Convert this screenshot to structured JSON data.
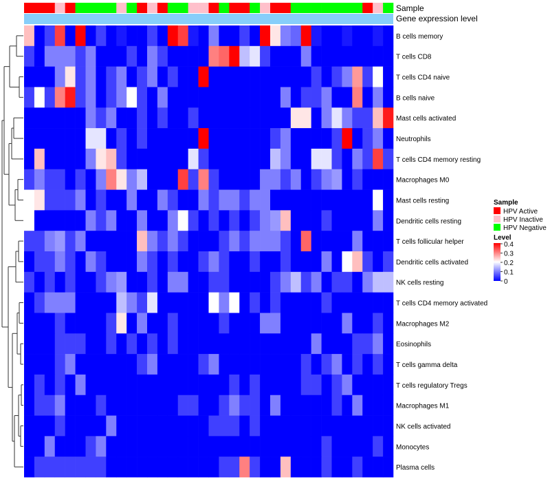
{
  "chart_data": {
    "type": "heatmap",
    "title": "",
    "annotation_rows": {
      "sample_label": "Sample",
      "gene_label": "Gene expression level",
      "gene_color": "#87CEFA"
    },
    "legend": {
      "sample_title": "Sample",
      "samples": [
        {
          "label": "HPV Active",
          "color": "#FF0000"
        },
        {
          "label": "HPV Inactive",
          "color": "#FFC0CB"
        },
        {
          "label": "HPV Negative",
          "color": "#00FF00"
        }
      ],
      "level_title": "Level",
      "level_ticks": [
        "0.4",
        "0.3",
        "0.2",
        "0.1",
        "0"
      ],
      "level_range": [
        0,
        0.4
      ]
    },
    "colorscale": {
      "low": "#0000FF",
      "mid": "#FFFFFF",
      "high": "#FF0000",
      "mid_value": 0.2
    },
    "columns_sample": [
      "A",
      "A",
      "A",
      "I",
      "A",
      "N",
      "N",
      "N",
      "N",
      "I",
      "N",
      "A",
      "I",
      "A",
      "N",
      "N",
      "I",
      "I",
      "A",
      "N",
      "A",
      "A",
      "N",
      "I",
      "A",
      "A",
      "N",
      "N",
      "N",
      "N",
      "N",
      "N",
      "N",
      "A",
      "I",
      "N"
    ],
    "rows": [
      "B cells memory",
      "T cells CD8",
      "T cells CD4 naive",
      "B cells naive",
      "Mast cells activated",
      "Neutrophils",
      "T cells CD4 memory resting",
      "Macrophages M0",
      "Mast cells resting",
      "Dendritic cells resting",
      "T cells follicular helper",
      "Dendritic cells activated",
      "NK cells resting",
      "T cells CD4 memory activated",
      "Macrophages M2",
      "Eosinophils",
      "T cells gamma delta",
      "T cells regulatory  Tregs",
      "Macrophages M1",
      "NK cells activated",
      "Monocytes",
      "Plasma cells"
    ],
    "values": [
      [
        0.25,
        0.0,
        0.05,
        0.35,
        0.0,
        0.4,
        0.0,
        0.05,
        0.0,
        0.02,
        0.0,
        0.0,
        0.05,
        0.0,
        0.4,
        0.35,
        0.02,
        0.0,
        0.1,
        0.0,
        0.0,
        0.05,
        0.0,
        0.4,
        0.22,
        0.1,
        0.08,
        0.4,
        0.02,
        0.0,
        0.0,
        0.02,
        0.0,
        0.0,
        0.02,
        0.0
      ],
      [
        0.05,
        0.0,
        0.1,
        0.1,
        0.1,
        0.05,
        0.1,
        0.0,
        0.0,
        0.0,
        0.05,
        0.0,
        0.1,
        0.05,
        0.0,
        0.0,
        0.0,
        0.0,
        0.3,
        0.32,
        0.4,
        0.15,
        0.18,
        0.05,
        0.0,
        0.0,
        0.0,
        0.1,
        0.0,
        0.0,
        0.0,
        0.0,
        0.0,
        0.0,
        0.0,
        0.0
      ],
      [
        0.0,
        0.0,
        0.0,
        0.1,
        0.22,
        0.05,
        0.1,
        0.0,
        0.05,
        0.1,
        0.0,
        0.05,
        0.1,
        0.0,
        0.05,
        0.0,
        0.0,
        0.4,
        0.0,
        0.0,
        0.0,
        0.0,
        0.0,
        0.0,
        0.0,
        0.0,
        0.0,
        0.0,
        0.05,
        0.0,
        0.05,
        0.1,
        0.28,
        0.05,
        0.2,
        0.0
      ],
      [
        0.05,
        0.2,
        0.05,
        0.3,
        0.38,
        0.05,
        0.1,
        0.0,
        0.05,
        0.1,
        0.2,
        0.05,
        0.0,
        0.1,
        0.0,
        0.0,
        0.0,
        0.0,
        0.0,
        0.0,
        0.0,
        0.0,
        0.0,
        0.0,
        0.0,
        0.1,
        0.0,
        0.05,
        0.05,
        0.1,
        0.0,
        0.0,
        0.3,
        0.0,
        0.1,
        0.0
      ],
      [
        0.0,
        0.0,
        0.0,
        0.0,
        0.0,
        0.0,
        0.1,
        0.05,
        0.1,
        0.0,
        0.0,
        0.05,
        0.0,
        0.05,
        0.0,
        0.0,
        0.05,
        0.0,
        0.0,
        0.0,
        0.0,
        0.0,
        0.0,
        0.0,
        0.0,
        0.0,
        0.22,
        0.22,
        0.0,
        0.1,
        0.18,
        0.1,
        0.05,
        0.05,
        0.25,
        0.38
      ],
      [
        0.0,
        0.0,
        0.0,
        0.0,
        0.0,
        0.0,
        0.18,
        0.18,
        0.0,
        0.05,
        0.0,
        0.05,
        0.0,
        0.0,
        0.0,
        0.0,
        0.0,
        0.4,
        0.0,
        0.0,
        0.0,
        0.0,
        0.0,
        0.0,
        0.05,
        0.1,
        0.0,
        0.0,
        0.0,
        0.0,
        0.05,
        0.4,
        0.0,
        0.05,
        0.1,
        0.0
      ],
      [
        0.0,
        0.25,
        0.0,
        0.0,
        0.0,
        0.0,
        0.1,
        0.22,
        0.25,
        0.05,
        0.0,
        0.0,
        0.0,
        0.0,
        0.0,
        0.0,
        0.18,
        0.05,
        0.0,
        0.0,
        0.0,
        0.0,
        0.0,
        0.0,
        0.15,
        0.1,
        0.0,
        0.0,
        0.18,
        0.18,
        0.05,
        0.0,
        0.1,
        0.05,
        0.35,
        0.05
      ],
      [
        0.05,
        0.1,
        0.05,
        0.05,
        0.0,
        0.05,
        0.0,
        0.1,
        0.3,
        0.22,
        0.1,
        0.15,
        0.0,
        0.0,
        0.0,
        0.35,
        0.05,
        0.3,
        0.05,
        0.0,
        0.0,
        0.0,
        0.0,
        0.1,
        0.1,
        0.05,
        0.1,
        0.0,
        0.05,
        0.1,
        0.12,
        0.0,
        0.05,
        0.0,
        0.0,
        0.0
      ],
      [
        0.2,
        0.22,
        0.05,
        0.05,
        0.05,
        0.1,
        0.0,
        0.05,
        0.0,
        0.0,
        0.1,
        0.0,
        0.0,
        0.1,
        0.05,
        0.0,
        0.0,
        0.1,
        0.05,
        0.1,
        0.1,
        0.05,
        0.1,
        0.1,
        0.0,
        0.0,
        0.0,
        0.0,
        0.0,
        0.0,
        0.0,
        0.0,
        0.0,
        0.0,
        0.2,
        0.0
      ],
      [
        0.2,
        0.0,
        0.0,
        0.0,
        0.0,
        0.0,
        0.1,
        0.05,
        0.1,
        0.0,
        0.0,
        0.1,
        0.0,
        0.0,
        0.1,
        0.2,
        0.05,
        0.0,
        0.05,
        0.0,
        0.05,
        0.0,
        0.05,
        0.1,
        0.12,
        0.25,
        0.0,
        0.0,
        0.0,
        0.05,
        0.0,
        0.0,
        0.0,
        0.0,
        0.1,
        0.0
      ],
      [
        0.05,
        0.05,
        0.1,
        0.12,
        0.05,
        0.1,
        0.0,
        0.0,
        0.0,
        0.0,
        0.0,
        0.25,
        0.1,
        0.05,
        0.1,
        0.05,
        0.0,
        0.0,
        0.0,
        0.05,
        0.1,
        0.05,
        0.1,
        0.1,
        0.1,
        0.05,
        0.0,
        0.32,
        0.0,
        0.0,
        0.0,
        0.0,
        0.1,
        0.0,
        0.0,
        0.0
      ],
      [
        0.0,
        0.05,
        0.05,
        0.1,
        0.05,
        0.0,
        0.1,
        0.05,
        0.0,
        0.0,
        0.0,
        0.1,
        0.05,
        0.0,
        0.05,
        0.0,
        0.0,
        0.05,
        0.1,
        0.05,
        0.0,
        0.0,
        0.05,
        0.0,
        0.0,
        0.05,
        0.0,
        0.0,
        0.0,
        0.1,
        0.0,
        0.2,
        0.25,
        0.05,
        0.0,
        0.05
      ],
      [
        0.05,
        0.0,
        0.05,
        0.0,
        0.05,
        0.0,
        0.0,
        0.05,
        0.1,
        0.12,
        0.0,
        0.0,
        0.05,
        0.0,
        0.1,
        0.1,
        0.0,
        0.0,
        0.05,
        0.05,
        0.0,
        0.0,
        0.0,
        0.0,
        0.05,
        0.1,
        0.15,
        0.05,
        0.1,
        0.0,
        0.05,
        0.05,
        0.0,
        0.1,
        0.15,
        0.15
      ],
      [
        0.0,
        0.05,
        0.1,
        0.1,
        0.1,
        0.0,
        0.0,
        0.0,
        0.0,
        0.15,
        0.1,
        0.05,
        0.18,
        0.0,
        0.0,
        0.0,
        0.0,
        0.0,
        0.2,
        0.1,
        0.2,
        0.0,
        0.05,
        0.0,
        0.05,
        0.0,
        0.0,
        0.0,
        0.0,
        0.05,
        0.0,
        0.0,
        0.0,
        0.0,
        0.0,
        0.0
      ],
      [
        0.0,
        0.0,
        0.0,
        0.05,
        0.0,
        0.0,
        0.0,
        0.0,
        0.05,
        0.22,
        0.0,
        0.1,
        0.0,
        0.0,
        0.05,
        0.0,
        0.0,
        0.0,
        0.0,
        0.05,
        0.0,
        0.0,
        0.0,
        0.1,
        0.1,
        0.0,
        0.0,
        0.0,
        0.0,
        0.0,
        0.0,
        0.1,
        0.0,
        0.0,
        0.05,
        0.0
      ],
      [
        0.0,
        0.0,
        0.0,
        0.05,
        0.05,
        0.05,
        0.0,
        0.0,
        0.05,
        0.0,
        0.05,
        0.0,
        0.05,
        0.0,
        0.05,
        0.0,
        0.0,
        0.0,
        0.0,
        0.0,
        0.0,
        0.0,
        0.0,
        0.0,
        0.0,
        0.0,
        0.0,
        0.0,
        0.1,
        0.0,
        0.0,
        0.0,
        0.05,
        0.05,
        0.1,
        0.0
      ],
      [
        0.0,
        0.0,
        0.0,
        0.05,
        0.1,
        0.0,
        0.0,
        0.0,
        0.0,
        0.0,
        0.0,
        0.05,
        0.1,
        0.0,
        0.0,
        0.0,
        0.0,
        0.05,
        0.1,
        0.0,
        0.0,
        0.0,
        0.0,
        0.0,
        0.0,
        0.0,
        0.0,
        0.05,
        0.0,
        0.05,
        0.1,
        0.0,
        0.05,
        0.0,
        0.05,
        0.0
      ],
      [
        0.0,
        0.05,
        0.0,
        0.05,
        0.0,
        0.1,
        0.0,
        0.0,
        0.0,
        0.0,
        0.0,
        0.0,
        0.0,
        0.0,
        0.0,
        0.0,
        0.0,
        0.0,
        0.0,
        0.0,
        0.05,
        0.0,
        0.05,
        0.0,
        0.0,
        0.0,
        0.0,
        0.05,
        0.05,
        0.0,
        0.05,
        0.1,
        0.0,
        0.0,
        0.0,
        0.0
      ],
      [
        0.0,
        0.05,
        0.05,
        0.1,
        0.0,
        0.0,
        0.0,
        0.05,
        0.0,
        0.0,
        0.0,
        0.0,
        0.0,
        0.0,
        0.0,
        0.05,
        0.05,
        0.0,
        0.0,
        0.05,
        0.1,
        0.05,
        0.05,
        0.0,
        0.1,
        0.0,
        0.0,
        0.0,
        0.0,
        0.0,
        0.05,
        0.0,
        0.1,
        0.0,
        0.0,
        0.0
      ],
      [
        0.0,
        0.0,
        0.0,
        0.05,
        0.0,
        0.0,
        0.0,
        0.0,
        0.1,
        0.0,
        0.0,
        0.0,
        0.0,
        0.0,
        0.0,
        0.0,
        0.0,
        0.0,
        0.05,
        0.05,
        0.05,
        0.0,
        0.05,
        0.0,
        0.0,
        0.0,
        0.0,
        0.0,
        0.0,
        0.0,
        0.0,
        0.0,
        0.0,
        0.0,
        0.0,
        0.0
      ],
      [
        0.0,
        0.0,
        0.1,
        0.0,
        0.0,
        0.0,
        0.05,
        0.1,
        0.0,
        0.0,
        0.0,
        0.0,
        0.0,
        0.0,
        0.0,
        0.0,
        0.0,
        0.0,
        0.0,
        0.0,
        0.0,
        0.0,
        0.0,
        0.0,
        0.0,
        0.0,
        0.0,
        0.0,
        0.0,
        0.05,
        0.0,
        0.0,
        0.0,
        0.0,
        0.05,
        0.0
      ],
      [
        0.0,
        0.05,
        0.05,
        0.05,
        0.05,
        0.05,
        0.05,
        0.05,
        0.0,
        0.0,
        0.0,
        0.0,
        0.0,
        0.0,
        0.0,
        0.0,
        0.0,
        0.0,
        0.0,
        0.05,
        0.05,
        0.3,
        0.05,
        0.0,
        0.0,
        0.25,
        0.0,
        0.0,
        0.0,
        0.05,
        0.0,
        0.0,
        0.05,
        0.0,
        0.0,
        0.0
      ]
    ]
  }
}
